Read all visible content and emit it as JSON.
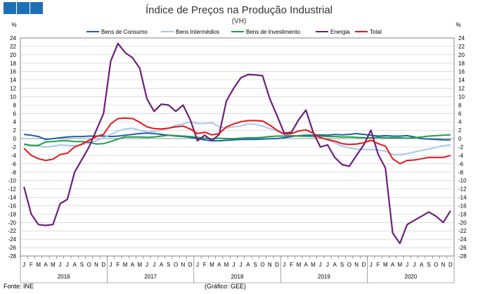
{
  "header": {
    "title": "Índice de Preços na Produção Industrial",
    "subtitle": "(VH)"
  },
  "footer": {
    "source": "Fonte: INE",
    "credit": "(Gráfico: GEE)"
  },
  "colors": {
    "logo": "#1f6fb5",
    "grid": "#c8c8c8",
    "axis": "#666666"
  },
  "chart_data": {
    "type": "line",
    "title": "Índice de Preços na Produção Industrial",
    "subtitle": "(VH)",
    "ylabel_left": "%",
    "ylabel_right": "%",
    "ylim": [
      -28,
      24
    ],
    "yticks": [
      24,
      22,
      20,
      18,
      16,
      14,
      12,
      10,
      8,
      6,
      4,
      2,
      0,
      -2,
      -4,
      -6,
      -8,
      -10,
      -12,
      -14,
      -16,
      -18,
      -20,
      -22,
      -24,
      -26,
      -28
    ],
    "grid": true,
    "legend_position": "top",
    "month_labels": [
      "J",
      "F",
      "M",
      "A",
      "M",
      "J",
      "J",
      "A",
      "S",
      "O",
      "N",
      "D"
    ],
    "years": [
      "2016",
      "2017",
      "2018",
      "2019",
      "2020"
    ],
    "series": [
      {
        "name": "Bens de Consumo",
        "color": "#1f5fa8",
        "values": [
          1.0,
          0.8,
          0.5,
          -0.2,
          0.0,
          0.2,
          0.4,
          0.5,
          0.5,
          0.6,
          0.6,
          0.6,
          0.5,
          0.6,
          0.8,
          1.0,
          1.2,
          1.3,
          1.2,
          1.0,
          0.8,
          0.6,
          0.5,
          0.3,
          0.0,
          -0.3,
          -0.5,
          -0.5,
          -0.4,
          -0.3,
          -0.2,
          -0.2,
          -0.2,
          -0.1,
          0.0,
          0.0,
          0.2,
          0.5,
          0.7,
          0.8,
          0.8,
          0.9,
          0.8,
          1.0,
          0.9,
          1.0,
          1.2,
          1.0,
          0.8,
          0.6,
          0.7,
          0.6,
          0.6,
          0.7,
          0.4,
          0.0,
          -0.1,
          -0.2,
          -0.3,
          -0.3
        ]
      },
      {
        "name": "Bens Intermédios",
        "color": "#a8c8ea",
        "values": [
          -1.5,
          -1.7,
          -1.8,
          -2.0,
          -1.8,
          -1.5,
          -1.6,
          -1.7,
          -1.5,
          -1.0,
          -0.5,
          0.2,
          1.0,
          1.8,
          2.3,
          2.5,
          2.0,
          1.6,
          1.7,
          2.0,
          2.5,
          3.2,
          3.5,
          4.0,
          3.6,
          3.6,
          3.8,
          2.8,
          2.5,
          2.8,
          3.0,
          3.5,
          3.4,
          3.0,
          2.4,
          1.8,
          1.0,
          0.7,
          0.6,
          0.5,
          0.4,
          0.3,
          -0.3,
          -1.0,
          -1.8,
          -2.2,
          -2.5,
          -2.6,
          -2.6,
          -2.7,
          -3.0,
          -3.8,
          -3.8,
          -3.6,
          -3.2,
          -2.8,
          -2.5,
          -2.1,
          -1.7,
          -1.5
        ]
      },
      {
        "name": "Bens de Investimento",
        "color": "#1e9e4a",
        "values": [
          -1.3,
          -1.6,
          -1.6,
          -0.8,
          -0.7,
          -0.5,
          -0.5,
          -0.7,
          -0.7,
          -0.9,
          -1.3,
          -1.2,
          -0.7,
          -0.1,
          0.4,
          0.4,
          0.4,
          0.3,
          0.4,
          0.6,
          0.8,
          0.7,
          0.6,
          0.5,
          0.3,
          0.1,
          0.0,
          0.1,
          0.0,
          0.0,
          0.1,
          0.2,
          0.2,
          0.3,
          0.5,
          0.6,
          0.6,
          0.7,
          0.6,
          0.6,
          0.6,
          0.6,
          0.5,
          0.5,
          0.4,
          0.4,
          0.3,
          0.2,
          0.2,
          0.3,
          0.2,
          0.2,
          0.2,
          0.1,
          0.2,
          0.4,
          0.6,
          0.7,
          0.8,
          0.9
        ]
      },
      {
        "name": "Energia",
        "color": "#6e1f7c",
        "values": [
          -11.5,
          -18.0,
          -20.5,
          -20.7,
          -20.5,
          -15.5,
          -14.5,
          -8.0,
          -5.0,
          -2.0,
          2.0,
          6.0,
          18.5,
          22.7,
          20.5,
          19.3,
          16.8,
          9.5,
          6.5,
          8.2,
          8.0,
          6.5,
          8.0,
          4.5,
          -0.5,
          0.8,
          -0.5,
          1.0,
          9.0,
          12.0,
          14.5,
          15.3,
          15.2,
          15.0,
          9.5,
          5.5,
          1.3,
          1.5,
          4.5,
          6.8,
          1.5,
          -2.0,
          -1.5,
          -4.5,
          -6.2,
          -6.6,
          -4.0,
          -1.5,
          2.0,
          -3.8,
          -7.0,
          -22.5,
          -25.0,
          -20.5,
          -19.5,
          -18.5,
          -17.5,
          -18.5,
          -20.0,
          -17.2
        ]
      },
      {
        "name": "Total",
        "color": "#e8161b",
        "values": [
          -2.3,
          -4.0,
          -4.8,
          -5.2,
          -4.9,
          -3.8,
          -3.5,
          -2.0,
          -1.3,
          -0.4,
          0.5,
          1.0,
          3.5,
          4.8,
          4.9,
          4.8,
          3.9,
          2.8,
          2.4,
          2.3,
          2.5,
          2.8,
          3.0,
          2.3,
          1.2,
          1.5,
          0.9,
          1.2,
          2.8,
          3.5,
          4.0,
          4.3,
          4.3,
          4.2,
          3.2,
          2.0,
          1.1,
          1.2,
          1.8,
          2.1,
          1.3,
          0.2,
          -0.2,
          -0.6,
          -1.2,
          -1.4,
          -1.3,
          -1.0,
          -0.4,
          -1.2,
          -1.8,
          -4.8,
          -6.0,
          -5.2,
          -5.1,
          -4.8,
          -4.5,
          -4.5,
          -4.5,
          -4.0
        ]
      }
    ]
  }
}
